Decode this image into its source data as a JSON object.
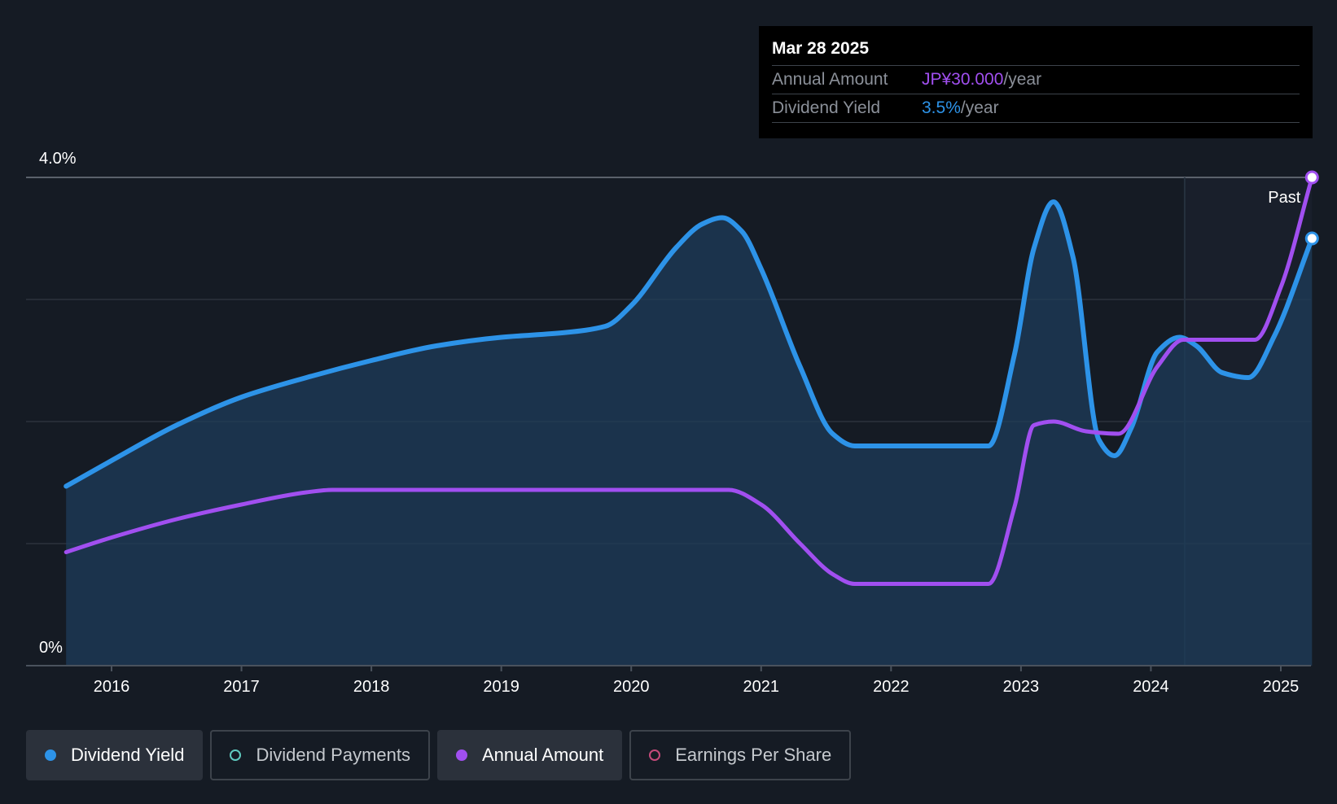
{
  "tooltip": {
    "date": "Mar 28 2025",
    "rows": [
      {
        "label": "Annual Amount",
        "value": "JP¥30.000",
        "unit": "/year"
      },
      {
        "label": "Dividend Yield",
        "value": "3.5%",
        "unit": "/year"
      }
    ]
  },
  "past_label": "Past",
  "colors": {
    "dividend_yield": "#2d93e8",
    "annual_amount": "#a14ff0",
    "dividend_payments": "#5fcabf",
    "earnings_per_share": "#c44a7a",
    "background": "#151b24"
  },
  "legend": [
    {
      "label": "Dividend Yield",
      "active": true,
      "color": "#2d93e8"
    },
    {
      "label": "Dividend Payments",
      "active": false,
      "color": "#5fcabf"
    },
    {
      "label": "Annual Amount",
      "active": true,
      "color": "#a14ff0"
    },
    {
      "label": "Earnings Per Share",
      "active": false,
      "color": "#c44a7a"
    }
  ],
  "chart_data": {
    "type": "line",
    "y_tick_labels": [
      "4.0%",
      "0%"
    ],
    "ylim": [
      0,
      4.0
    ],
    "xlim": [
      2015.25,
      2025.24
    ],
    "x_ticks": [
      2016,
      2017,
      2018,
      2019,
      2020,
      2021,
      2022,
      2023,
      2024,
      2025
    ],
    "grid": true,
    "future_region_start": 2024.26,
    "series": [
      {
        "name": "Dividend Yield",
        "area": true,
        "x": [
          2015.65,
          2016.0,
          2016.5,
          2017.0,
          2017.5,
          2018.0,
          2018.5,
          2019.0,
          2019.5,
          2019.8,
          2020.0,
          2020.35,
          2020.55,
          2020.7,
          2020.85,
          2021.0,
          2021.3,
          2021.55,
          2021.72,
          2022.0,
          2022.5,
          2022.75,
          2022.95,
          2023.1,
          2023.25,
          2023.4,
          2023.6,
          2023.72,
          2023.85,
          2024.05,
          2024.22,
          2024.35,
          2024.55,
          2024.75,
          2024.95,
          2025.24
        ],
        "y": [
          1.47,
          1.68,
          1.97,
          2.2,
          2.36,
          2.5,
          2.62,
          2.69,
          2.73,
          2.78,
          2.95,
          3.43,
          3.62,
          3.67,
          3.56,
          3.25,
          2.45,
          1.9,
          1.8,
          1.8,
          1.8,
          1.8,
          2.55,
          3.42,
          3.8,
          3.35,
          1.85,
          1.72,
          1.95,
          2.57,
          2.69,
          2.62,
          2.4,
          2.36,
          2.7,
          3.5
        ]
      },
      {
        "name": "Annual Amount",
        "area": false,
        "x": [
          2015.65,
          2016.0,
          2016.5,
          2017.0,
          2017.5,
          2017.7,
          2018.0,
          2019.0,
          2020.0,
          2020.75,
          2021.0,
          2021.3,
          2021.55,
          2021.72,
          2022.0,
          2022.5,
          2022.75,
          2022.95,
          2023.1,
          2023.25,
          2023.5,
          2023.75,
          2024.05,
          2024.25,
          2024.5,
          2024.8,
          2025.0,
          2025.24
        ],
        "y": [
          0.93,
          1.05,
          1.2,
          1.32,
          1.42,
          1.44,
          1.44,
          1.44,
          1.44,
          1.44,
          1.32,
          1.0,
          0.75,
          0.67,
          0.67,
          0.67,
          0.67,
          1.3,
          1.97,
          2.0,
          1.92,
          1.9,
          2.45,
          2.67,
          2.67,
          2.67,
          3.1,
          4.0
        ]
      }
    ]
  }
}
